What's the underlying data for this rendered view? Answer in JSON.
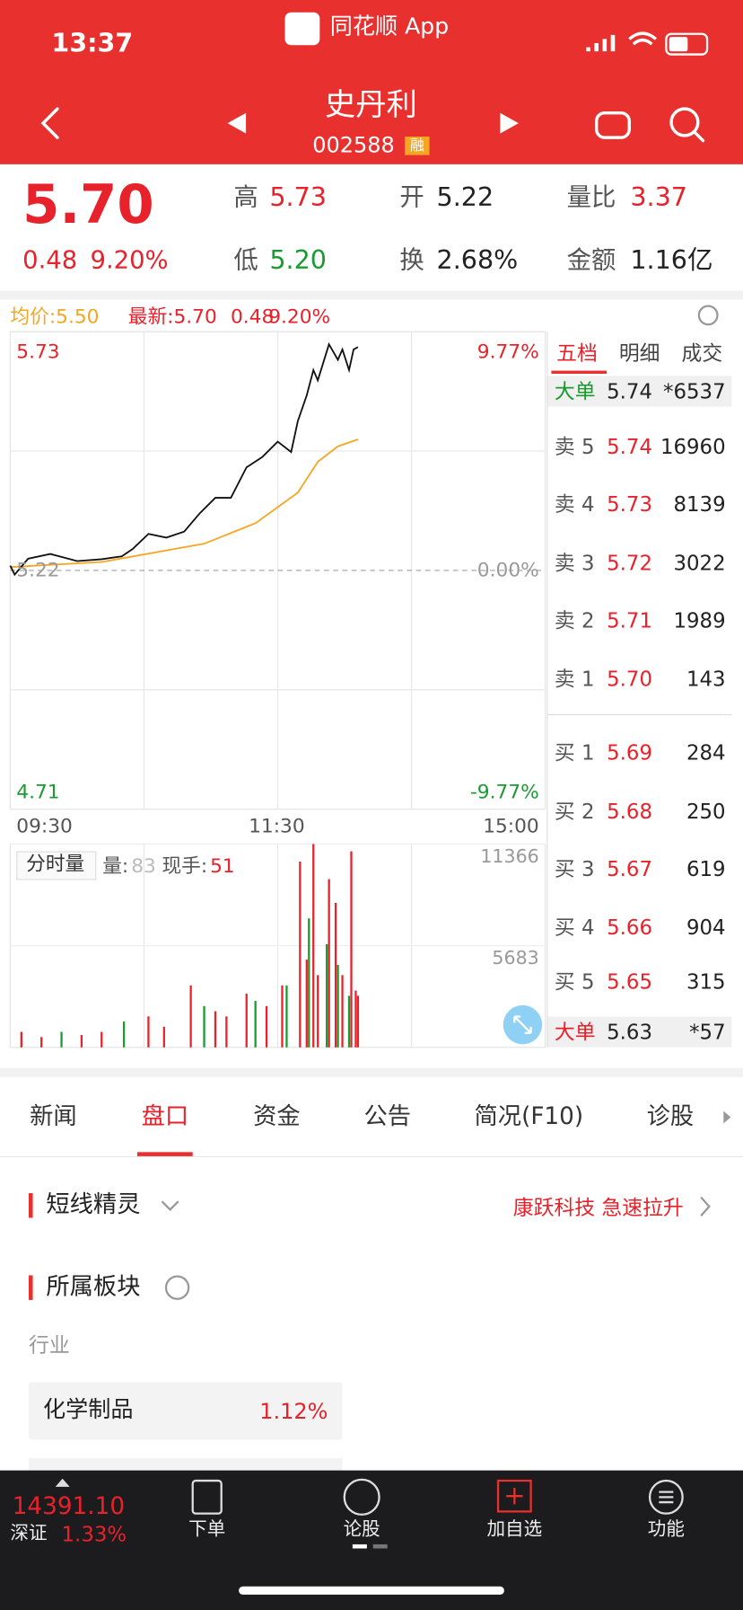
{
  "status_bar": {
    "time": "13:37",
    "app": "同花顺 App"
  },
  "header": {
    "name": "史丹利",
    "code": "002588",
    "tag": "融"
  },
  "quote": {
    "price": "5.70",
    "change": "0.48",
    "change_pct": "9.20%",
    "stats": [
      {
        "label": "高",
        "value": "5.73"
      },
      {
        "label": "开",
        "value": "5.22"
      },
      {
        "label": "量比",
        "value": "3.37"
      },
      {
        "label": "低",
        "value": "5.20"
      },
      {
        "label": "换",
        "value": "2.68%"
      },
      {
        "label": "金额",
        "value": "1.16亿"
      }
    ]
  },
  "chart": {
    "legend": {
      "avg": "均价:5.50",
      "latest": "最新:5.70",
      "latest_change": "0.48",
      "latest_pct": "9.20%"
    },
    "price": {
      "xlim": [
        0,
        240
      ],
      "ylim": [
        4.71,
        5.73
      ],
      "yticks": [
        4.71,
        5.22,
        5.73
      ],
      "pct_labels": [
        "-9.77%",
        "0.00%",
        "9.77%"
      ],
      "x_labels": [
        "09:30",
        "11:30",
        "15:00"
      ],
      "line": {
        "color": "#111111",
        "x": [
          0,
          2,
          8,
          18,
          30,
          41,
          50,
          55,
          62,
          70,
          78,
          85,
          92,
          99,
          106,
          113,
          120,
          126,
          129,
          133,
          136,
          138,
          143,
          147,
          149,
          152,
          154,
          156
        ],
        "values": [
          5.23,
          5.211,
          5.245,
          5.255,
          5.24,
          5.244,
          5.25,
          5.266,
          5.298,
          5.29,
          5.303,
          5.342,
          5.375,
          5.375,
          5.44,
          5.462,
          5.495,
          5.473,
          5.539,
          5.594,
          5.648,
          5.626,
          5.703,
          5.67,
          5.692,
          5.648,
          5.692,
          5.697
        ]
      },
      "avg": {
        "color": "#f5a623",
        "x": [
          0,
          41,
          87,
          110,
          129,
          138,
          147,
          156
        ],
        "values": [
          5.227,
          5.238,
          5.277,
          5.321,
          5.386,
          5.452,
          5.485,
          5.5
        ]
      }
    },
    "volume": {
      "title": "分时量",
      "vol_label": "量:",
      "vol": "83",
      "hand_label": "现手:",
      "hand": "51",
      "ylim": [
        0,
        11366
      ],
      "yticks": [
        5683,
        11366
      ],
      "up": {
        "color": "#e8222b",
        "x": [
          5,
          14,
          32,
          41,
          62,
          69,
          81,
          92,
          97,
          106,
          115,
          122,
          130,
          133,
          136,
          138,
          143,
          146,
          149,
          153,
          155,
          156
        ],
        "values": [
          865,
          577,
          692,
          865,
          1731,
          1154,
          3462,
          2019,
          1731,
          3000,
          2308,
          3462,
          10385,
          4904,
          11366,
          4038,
          9404,
          8077,
          4038,
          10962,
          3173,
          2885
        ]
      },
      "down": {
        "color": "#1a9b30",
        "x": [
          23,
          51,
          87,
          110,
          124,
          134,
          142,
          147,
          152
        ],
        "values": [
          865,
          1442,
          2308,
          2596,
          3462,
          7212,
          5770,
          4615,
          2885
        ]
      }
    }
  },
  "order_book": {
    "tabs": [
      "五档",
      "明细",
      "成交"
    ],
    "big_top": {
      "label": "大单",
      "price": "5.74",
      "vol": "*6537"
    },
    "asks": [
      {
        "label": "卖 5",
        "price": "5.74",
        "vol": "16960"
      },
      {
        "label": "卖 4",
        "price": "5.73",
        "vol": "8139"
      },
      {
        "label": "卖 3",
        "price": "5.72",
        "vol": "3022"
      },
      {
        "label": "卖 2",
        "price": "5.71",
        "vol": "1989"
      },
      {
        "label": "卖 1",
        "price": "5.70",
        "vol": "143"
      }
    ],
    "bids": [
      {
        "label": "买 1",
        "price": "5.69",
        "vol": "284"
      },
      {
        "label": "买 2",
        "price": "5.68",
        "vol": "250"
      },
      {
        "label": "买 3",
        "price": "5.67",
        "vol": "619"
      },
      {
        "label": "买 4",
        "price": "5.66",
        "vol": "904"
      },
      {
        "label": "买 5",
        "price": "5.65",
        "vol": "315"
      }
    ],
    "big_bottom": {
      "label": "大单",
      "price": "5.63",
      "vol": "*57"
    }
  },
  "tabs": [
    "新闻",
    "盘口",
    "资金",
    "公告",
    "简况(F10)",
    "诊股"
  ],
  "section_spirit": {
    "title": "短线精灵",
    "alert": "康跃科技 急速拉升"
  },
  "section_sector": {
    "title": "所属板块",
    "subtitle": "行业",
    "items": [
      {
        "name": "化学制品",
        "pct": "1.12%"
      }
    ]
  },
  "bottom_bar": {
    "index_value": "14391.10",
    "index_name": "深证",
    "index_pct": "1.33%",
    "nav": [
      "下单",
      "论股",
      "加自选",
      "功能"
    ]
  }
}
